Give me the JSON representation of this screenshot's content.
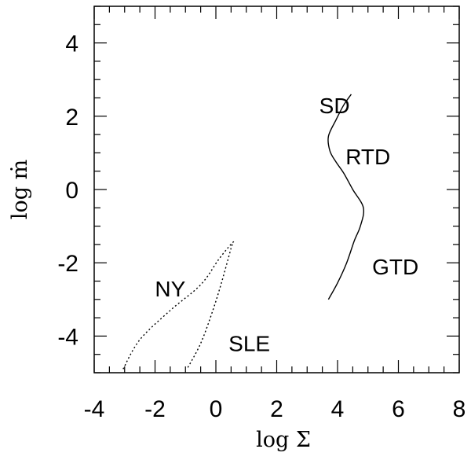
{
  "chart_data": {
    "type": "line",
    "xlabel": "log Σ",
    "ylabel": "log ṁ",
    "xlim": [
      -4,
      8
    ],
    "ylim": [
      -5,
      5
    ],
    "x_ticks": [
      "-4",
      "-2",
      "0",
      "2",
      "4",
      "6",
      "8"
    ],
    "y_ticks": [
      "4",
      "2",
      "0",
      "-2",
      "-4"
    ],
    "grid": false,
    "series": [
      {
        "style": "solid",
        "points": [
          [
            4.45,
            2.6
          ],
          [
            4.2,
            2.3
          ],
          [
            3.95,
            1.9
          ],
          [
            3.7,
            1.45
          ],
          [
            3.75,
            1.05
          ],
          [
            3.95,
            0.75
          ],
          [
            4.2,
            0.45
          ],
          [
            4.5,
            0.0
          ],
          [
            4.85,
            -0.5
          ],
          [
            4.75,
            -1.0
          ],
          [
            4.55,
            -1.4
          ],
          [
            4.3,
            -2.0
          ],
          [
            4.0,
            -2.55
          ],
          [
            3.7,
            -3.0
          ]
        ]
      },
      {
        "style": "dotted",
        "points": [
          [
            -3.05,
            -4.9
          ],
          [
            -2.5,
            -4.1
          ],
          [
            -1.5,
            -3.3
          ],
          [
            -0.5,
            -2.6
          ],
          [
            0.1,
            -1.9
          ],
          [
            0.55,
            -1.45
          ],
          [
            0.5,
            -1.6
          ],
          [
            0.2,
            -2.5
          ],
          [
            -0.1,
            -3.3
          ],
          [
            -0.5,
            -4.2
          ],
          [
            -0.95,
            -4.9
          ]
        ]
      }
    ],
    "annotations": [
      {
        "text": "SD",
        "x": 3.9,
        "y": 2.3
      },
      {
        "text": "RTD",
        "x": 5.0,
        "y": 0.9
      },
      {
        "text": "GTD",
        "x": 5.9,
        "y": -2.1
      },
      {
        "text": "NY",
        "x": -1.5,
        "y": -2.7
      },
      {
        "text": "SLE",
        "x": 1.1,
        "y": -4.2
      }
    ]
  }
}
